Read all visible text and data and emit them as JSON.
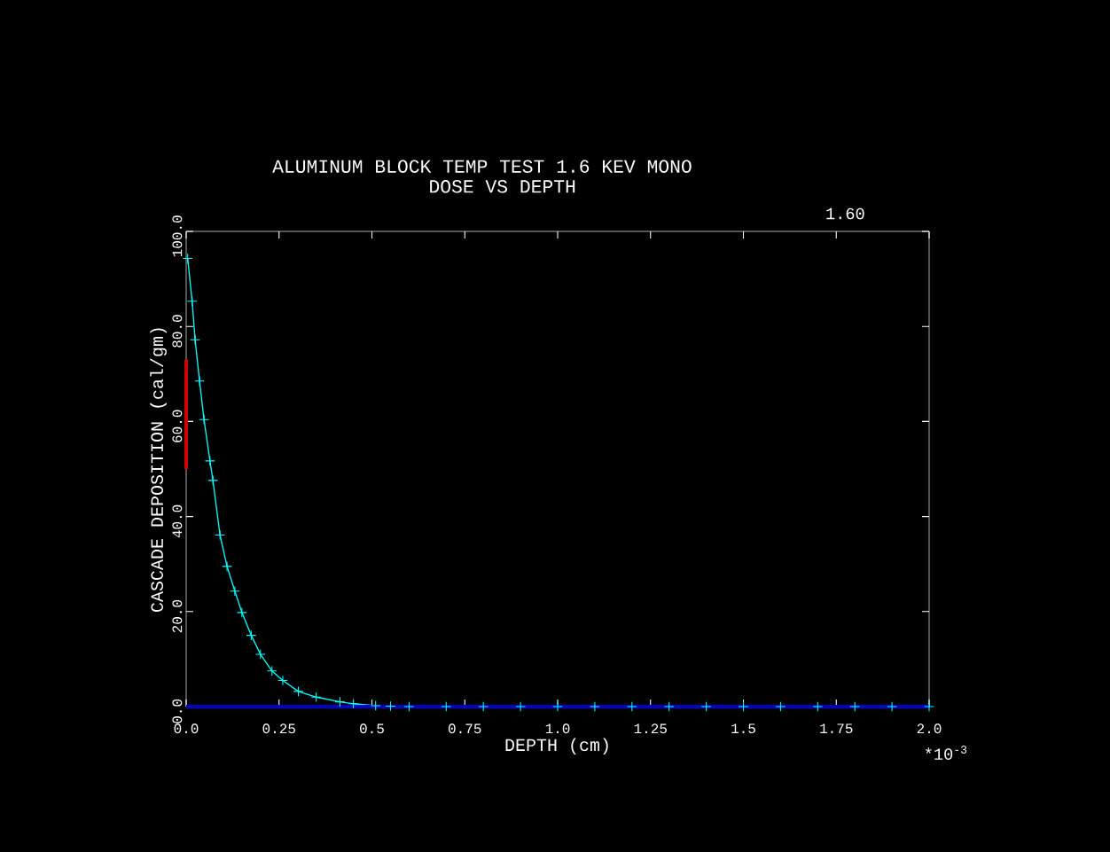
{
  "chart_data": {
    "type": "line",
    "title": "ALUMINUM BLOCK TEMP TEST     1.6 KEV MONO",
    "subtitle": "DOSE VS DEPTH",
    "xlabel": "DEPTH (cm)",
    "ylabel": "CASCADE DEPOSITION (cal/gm)",
    "annotations": [
      "1.60",
      "*10$^{-3}$"
    ],
    "series": [
      {
        "color": "#00ffff",
        "marker": "cross",
        "x": [
          0.004,
          0.016,
          0.024,
          0.036,
          0.048,
          0.064,
          0.072,
          0.091,
          0.11,
          0.131,
          0.15,
          0.175,
          0.2,
          0.231,
          0.26,
          0.302,
          0.35,
          0.414,
          0.45,
          0.51,
          0.55,
          0.6,
          0.7,
          0.8,
          0.9,
          1.0,
          1.1,
          1.2,
          1.3,
          1.4,
          1.5,
          1.6,
          1.7,
          1.8,
          1.9,
          2.0
        ],
        "values": [
          94.3,
          85.3,
          77.2,
          68.5,
          60.4,
          51.7,
          47.6,
          36.1,
          29.5,
          24.3,
          19.8,
          15.0,
          11.0,
          7.5,
          5.5,
          3.2,
          2.0,
          1.0,
          0.6,
          0.2,
          0.1,
          0,
          0,
          0,
          0,
          0,
          0,
          0,
          0,
          0,
          0,
          0,
          0,
          0,
          0,
          0
        ]
      },
      {
        "color": "#cc0000",
        "marker": "none",
        "x": [
          0,
          0
        ],
        "values": [
          50,
          73
        ]
      },
      {
        "color": "#0000cc",
        "marker": "none",
        "x": [
          0,
          2
        ],
        "values": [
          0,
          0
        ]
      }
    ],
    "xlim": [
      0,
      2
    ],
    "ylim": [
      0,
      100
    ],
    "xticks": [
      {
        "value": 0,
        "label": "0.0"
      },
      0.25,
      0.5,
      0.75,
      {
        "value": 1,
        "label": "1.0"
      },
      1.25,
      1.5,
      1.75,
      {
        "value": 2,
        "label": "2.0"
      }
    ],
    "yticks": [
      {
        "value": 0,
        "label": "0.0"
      },
      {
        "value": 20,
        "label": "20.0"
      },
      {
        "value": 40,
        "label": "40.0"
      },
      {
        "value": 60,
        "label": "60.0"
      },
      {
        "value": 80,
        "label": "80.0"
      },
      {
        "value": 100,
        "label": "100.0"
      }
    ],
    "grid": false
  }
}
